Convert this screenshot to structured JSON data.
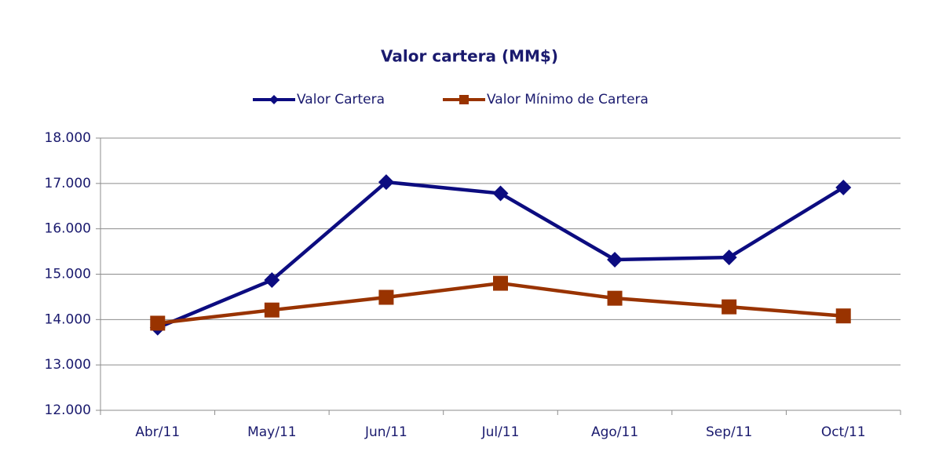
{
  "chart_data": {
    "type": "line",
    "title": "Valor cartera (MM$)",
    "categories": [
      "Abr/11",
      "May/11",
      "Jun/11",
      "Jul/11",
      "Ago/11",
      "Sep/11",
      "Oct/11"
    ],
    "series": [
      {
        "name": "Valor Cartera",
        "color": "#0c0c80",
        "marker": "diamond",
        "values": [
          13820,
          14870,
          17030,
          16780,
          15320,
          15370,
          16910
        ]
      },
      {
        "name": "Valor Mínimo de Cartera",
        "color": "#993300",
        "marker": "square",
        "values": [
          13920,
          14210,
          14490,
          14800,
          14470,
          14280,
          14080
        ]
      }
    ],
    "ylim": [
      12000,
      18000
    ],
    "yticks": [
      {
        "value": 12000,
        "label": "12.000"
      },
      {
        "value": 13000,
        "label": "13.000"
      },
      {
        "value": 14000,
        "label": "14.000"
      },
      {
        "value": 15000,
        "label": "15.000"
      },
      {
        "value": 16000,
        "label": "16.000"
      },
      {
        "value": 17000,
        "label": "17.000"
      },
      {
        "value": 18000,
        "label": "18.000"
      }
    ],
    "grid": true,
    "legend": "top"
  }
}
